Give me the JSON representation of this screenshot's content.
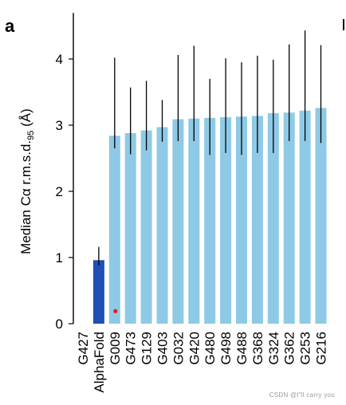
{
  "panel_label": "a",
  "watermark": "CSDN @l\"ll  carry  you",
  "colors": {
    "bar": "#8ecae6",
    "alphafold_bar": "#1f4fb5",
    "error_bar": "#000000",
    "marker": "#e02020",
    "axis": "#000000"
  },
  "chart_data": {
    "type": "bar",
    "title": "",
    "xlabel": "",
    "ylabel_prefix": "Median Cα r.m.s.d.",
    "ylabel_subscript": "95",
    "ylabel_suffix": " (Å)",
    "ylim": [
      0,
      4.6
    ],
    "yticks": [
      0,
      1,
      2,
      3,
      4
    ],
    "grid": false,
    "categories": [
      "G427",
      "AlphaFold",
      "G009",
      "G473",
      "G129",
      "G403",
      "G032",
      "G420",
      "G480",
      "G498",
      "G488",
      "G368",
      "G324",
      "G362",
      "G253",
      "G216"
    ],
    "values": [
      null,
      0.96,
      2.84,
      2.88,
      2.92,
      2.97,
      3.09,
      3.1,
      3.11,
      3.12,
      3.13,
      3.14,
      3.18,
      3.19,
      3.22,
      3.26
    ],
    "error_low": [
      null,
      0.88,
      2.65,
      2.56,
      2.62,
      2.75,
      2.76,
      2.76,
      2.55,
      2.58,
      2.55,
      2.58,
      2.58,
      2.76,
      2.76,
      2.73
    ],
    "error_high": [
      null,
      1.16,
      4.02,
      3.57,
      3.67,
      3.38,
      4.06,
      4.2,
      3.7,
      4.01,
      3.95,
      4.05,
      3.99,
      4.22,
      4.43,
      4.21
    ],
    "highlight": "AlphaFold",
    "point_markers": [
      {
        "category": "G009",
        "y": 0.19
      }
    ]
  }
}
